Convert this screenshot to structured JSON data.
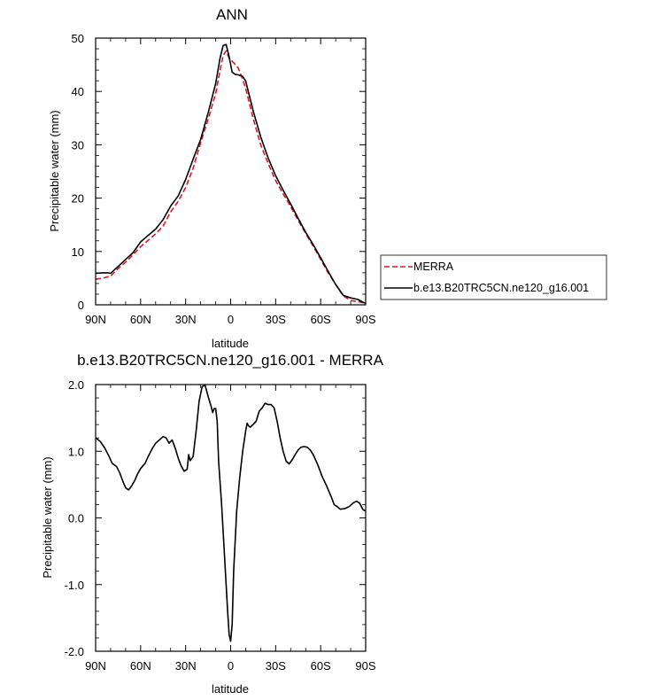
{
  "chart_data": [
    {
      "type": "line",
      "title": "ANN",
      "xlabel": "latitude",
      "ylabel": "Precipitable water (mm)",
      "xlim": [
        90,
        -90
      ],
      "ylim": [
        0,
        50
      ],
      "x_ticks": [
        90,
        60,
        30,
        0,
        -30,
        -60,
        -90
      ],
      "x_tick_labels": [
        "90N",
        "60N",
        "30N",
        "0",
        "30S",
        "60S",
        "90S"
      ],
      "y_ticks": [
        0,
        10,
        20,
        30,
        40,
        50
      ],
      "y_tick_labels": [
        "0",
        "10",
        "20",
        "30",
        "40",
        "50"
      ],
      "legend_position": "right",
      "series": [
        {
          "name": "MERRA",
          "color": "#e0141e",
          "dash": "dashed",
          "points": [
            [
              90,
              4.8
            ],
            [
              85,
              5.0
            ],
            [
              80,
              5.4
            ],
            [
              75,
              6.8
            ],
            [
              70,
              8.0
            ],
            [
              65,
              9.4
            ],
            [
              60,
              10.9
            ],
            [
              55,
              12.1
            ],
            [
              50,
              13.3
            ],
            [
              45,
              14.8
            ],
            [
              40,
              17.4
            ],
            [
              35,
              19.4
            ],
            [
              30,
              22.0
            ],
            [
              25,
              25.6
            ],
            [
              20,
              30.4
            ],
            [
              15,
              34.8
            ],
            [
              10,
              39.6
            ],
            [
              7,
              44.0
            ],
            [
              5,
              46.7
            ],
            [
              3,
              47.6
            ],
            [
              1,
              46.2
            ],
            [
              -2,
              45.4
            ],
            [
              -5,
              44.4
            ],
            [
              -8,
              42.3
            ],
            [
              -10,
              40.6
            ],
            [
              -15,
              35.0
            ],
            [
              -20,
              30.0
            ],
            [
              -25,
              26.5
            ],
            [
              -30,
              23.3
            ],
            [
              -35,
              20.8
            ],
            [
              -40,
              18.4
            ],
            [
              -45,
              15.8
            ],
            [
              -50,
              13.4
            ],
            [
              -55,
              11.0
            ],
            [
              -60,
              8.5
            ],
            [
              -65,
              6.0
            ],
            [
              -70,
              3.8
            ],
            [
              -75,
              1.7
            ],
            [
              -80,
              0.8
            ],
            [
              -85,
              0.6
            ],
            [
              -90,
              0.3
            ]
          ]
        },
        {
          "name": "b.e13.B20TRC5CN.ne120_g16.001",
          "color": "#000000",
          "dash": "solid",
          "points": [
            [
              90,
              5.9
            ],
            [
              85,
              6.0
            ],
            [
              82,
              6.0
            ],
            [
              80,
              5.9
            ],
            [
              75,
              7.2
            ],
            [
              70,
              8.5
            ],
            [
              65,
              9.8
            ],
            [
              60,
              11.8
            ],
            [
              55,
              13.0
            ],
            [
              50,
              14.2
            ],
            [
              45,
              16.0
            ],
            [
              40,
              18.5
            ],
            [
              35,
              20.4
            ],
            [
              30,
              23.5
            ],
            [
              25,
              27.3
            ],
            [
              20,
              31.0
            ],
            [
              15,
              36.0
            ],
            [
              10,
              41.5
            ],
            [
              7,
              46.3
            ],
            [
              5,
              48.6
            ],
            [
              3,
              48.8
            ],
            [
              1,
              46.5
            ],
            [
              -1,
              43.6
            ],
            [
              -3,
              43.2
            ],
            [
              -5,
              43.1
            ],
            [
              -8,
              42.8
            ],
            [
              -10,
              42.0
            ],
            [
              -15,
              36.4
            ],
            [
              -20,
              31.5
            ],
            [
              -25,
              27.5
            ],
            [
              -30,
              24.2
            ],
            [
              -35,
              21.5
            ],
            [
              -40,
              18.9
            ],
            [
              -45,
              16.2
            ],
            [
              -50,
              13.6
            ],
            [
              -55,
              11.3
            ],
            [
              -60,
              8.8
            ],
            [
              -65,
              6.3
            ],
            [
              -70,
              3.8
            ],
            [
              -75,
              1.8
            ],
            [
              -80,
              1.3
            ],
            [
              -85,
              1.0
            ],
            [
              -88,
              0.5
            ],
            [
              -90,
              0.3
            ]
          ]
        }
      ]
    },
    {
      "type": "line",
      "title": "b.e13.B20TRC5CN.ne120_g16.001 - MERRA",
      "xlabel": "latitude",
      "ylabel": "Precipitable water (mm)",
      "xlim": [
        90,
        -90
      ],
      "ylim": [
        -2.0,
        2.0
      ],
      "x_ticks": [
        90,
        60,
        30,
        0,
        -30,
        -60,
        -90
      ],
      "x_tick_labels": [
        "90N",
        "60N",
        "30N",
        "0",
        "30S",
        "60S",
        "90S"
      ],
      "y_ticks": [
        -2.0,
        -1.0,
        0.0,
        1.0,
        2.0
      ],
      "y_tick_labels": [
        "-2.0",
        "-1.0",
        "0.0",
        "1.0",
        "2.0"
      ],
      "series": [
        {
          "color": "#000000",
          "dash": "solid",
          "points": [
            [
              90,
              1.2
            ],
            [
              87,
              1.15
            ],
            [
              84,
              1.05
            ],
            [
              81,
              0.92
            ],
            [
              79,
              0.82
            ],
            [
              76,
              0.77
            ],
            [
              74,
              0.68
            ],
            [
              72,
              0.56
            ],
            [
              70,
              0.45
            ],
            [
              68,
              0.42
            ],
            [
              66,
              0.48
            ],
            [
              64,
              0.56
            ],
            [
              62,
              0.66
            ],
            [
              60,
              0.74
            ],
            [
              57,
              0.82
            ],
            [
              55,
              0.92
            ],
            [
              52,
              1.05
            ],
            [
              50,
              1.12
            ],
            [
              47,
              1.18
            ],
            [
              45,
              1.22
            ],
            [
              43,
              1.2
            ],
            [
              41,
              1.12
            ],
            [
              39,
              1.17
            ],
            [
              37,
              1.05
            ],
            [
              35,
              0.9
            ],
            [
              33,
              0.78
            ],
            [
              31,
              0.7
            ],
            [
              29,
              0.73
            ],
            [
              28,
              0.95
            ],
            [
              27,
              0.86
            ],
            [
              25,
              0.92
            ],
            [
              23,
              1.3
            ],
            [
              21,
              1.75
            ],
            [
              19,
              1.97
            ],
            [
              17,
              1.99
            ],
            [
              15,
              1.82
            ],
            [
              13,
              1.67
            ],
            [
              12,
              1.58
            ],
            [
              11,
              1.64
            ],
            [
              10,
              1.64
            ],
            [
              9,
              1.45
            ],
            [
              8,
              0.85
            ],
            [
              6,
              0.2
            ],
            [
              4,
              -0.6
            ],
            [
              2,
              -1.4
            ],
            [
              1,
              -1.75
            ],
            [
              0,
              -1.85
            ],
            [
              -1,
              -1.6
            ],
            [
              -2,
              -0.8
            ],
            [
              -4,
              0.1
            ],
            [
              -6,
              0.6
            ],
            [
              -8,
              1.0
            ],
            [
              -10,
              1.3
            ],
            [
              -11,
              1.42
            ],
            [
              -12,
              1.38
            ],
            [
              -13,
              1.36
            ],
            [
              -15,
              1.4
            ],
            [
              -17,
              1.45
            ],
            [
              -19,
              1.6
            ],
            [
              -21,
              1.65
            ],
            [
              -23,
              1.72
            ],
            [
              -25,
              1.7
            ],
            [
              -27,
              1.7
            ],
            [
              -29,
              1.65
            ],
            [
              -31,
              1.45
            ],
            [
              -33,
              1.2
            ],
            [
              -35,
              1.0
            ],
            [
              -37,
              0.85
            ],
            [
              -39,
              0.81
            ],
            [
              -41,
              0.87
            ],
            [
              -43,
              0.95
            ],
            [
              -45,
              1.02
            ],
            [
              -47,
              1.06
            ],
            [
              -49,
              1.07
            ],
            [
              -51,
              1.06
            ],
            [
              -53,
              1.02
            ],
            [
              -55,
              0.95
            ],
            [
              -58,
              0.8
            ],
            [
              -61,
              0.62
            ],
            [
              -64,
              0.48
            ],
            [
              -67,
              0.32
            ],
            [
              -69,
              0.2
            ],
            [
              -71,
              0.17
            ],
            [
              -73,
              0.13
            ],
            [
              -76,
              0.14
            ],
            [
              -79,
              0.17
            ],
            [
              -82,
              0.23
            ],
            [
              -84,
              0.25
            ],
            [
              -86,
              0.22
            ],
            [
              -88,
              0.13
            ],
            [
              -90,
              0.1
            ]
          ]
        }
      ]
    }
  ]
}
